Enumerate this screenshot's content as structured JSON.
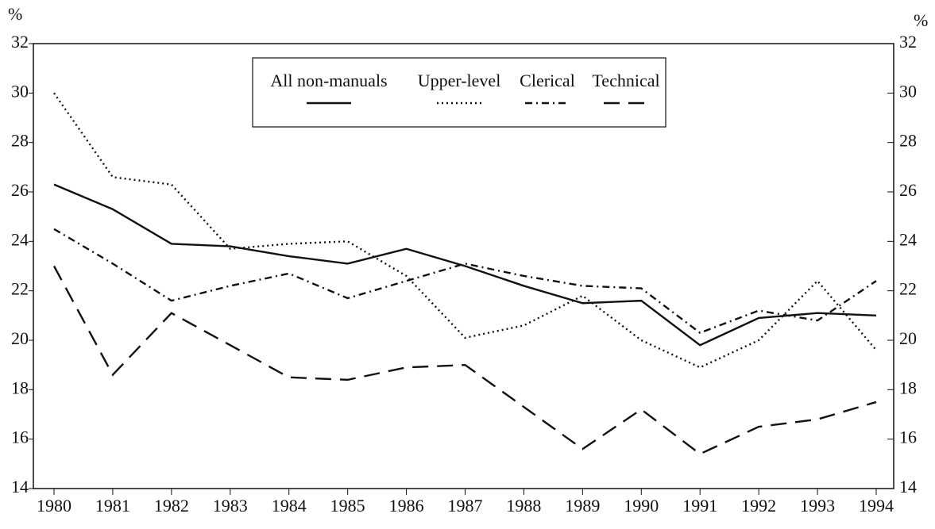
{
  "chart_data": {
    "type": "line",
    "ylabel": "%",
    "y2label": "%",
    "categories": [
      "1980",
      "1981",
      "1982",
      "1983",
      "1984",
      "1985",
      "1986",
      "1987",
      "1988",
      "1989",
      "1990",
      "1991",
      "1992",
      "1993",
      "1994"
    ],
    "series": [
      {
        "name": "All non-manuals",
        "color": "#111111",
        "dash": "solid",
        "values": [
          26.3,
          25.3,
          23.9,
          23.8,
          23.4,
          23.1,
          23.7,
          23.0,
          22.2,
          21.5,
          21.6,
          19.8,
          20.9,
          21.1,
          21.0
        ]
      },
      {
        "name": "Upper-level",
        "color": "#111111",
        "dash": "dotted",
        "values": [
          30.0,
          26.6,
          26.3,
          23.7,
          23.9,
          24.0,
          22.6,
          20.1,
          20.6,
          21.8,
          20.0,
          18.9,
          20.0,
          22.4,
          19.6
        ]
      },
      {
        "name": "Clerical",
        "color": "#111111",
        "dash": "dashdot",
        "values": [
          24.5,
          23.1,
          21.6,
          22.2,
          22.7,
          21.7,
          22.4,
          23.1,
          22.6,
          22.2,
          22.1,
          20.3,
          21.2,
          20.8,
          22.4
        ]
      },
      {
        "name": "Technical",
        "color": "#111111",
        "dash": "dashed",
        "values": [
          23.0,
          18.6,
          21.1,
          19.8,
          18.5,
          18.4,
          18.9,
          19.0,
          17.3,
          15.6,
          17.2,
          15.4,
          16.5,
          16.8,
          17.5
        ]
      }
    ],
    "ylim": [
      14,
      32
    ],
    "yticks": [
      14,
      16,
      18,
      20,
      22,
      24,
      26,
      28,
      30,
      32
    ],
    "y2lim": [
      14,
      32
    ],
    "y2ticks": [
      14,
      16,
      18,
      20,
      22,
      24,
      26,
      28,
      30,
      32
    ],
    "grid": false,
    "legend": "top"
  }
}
